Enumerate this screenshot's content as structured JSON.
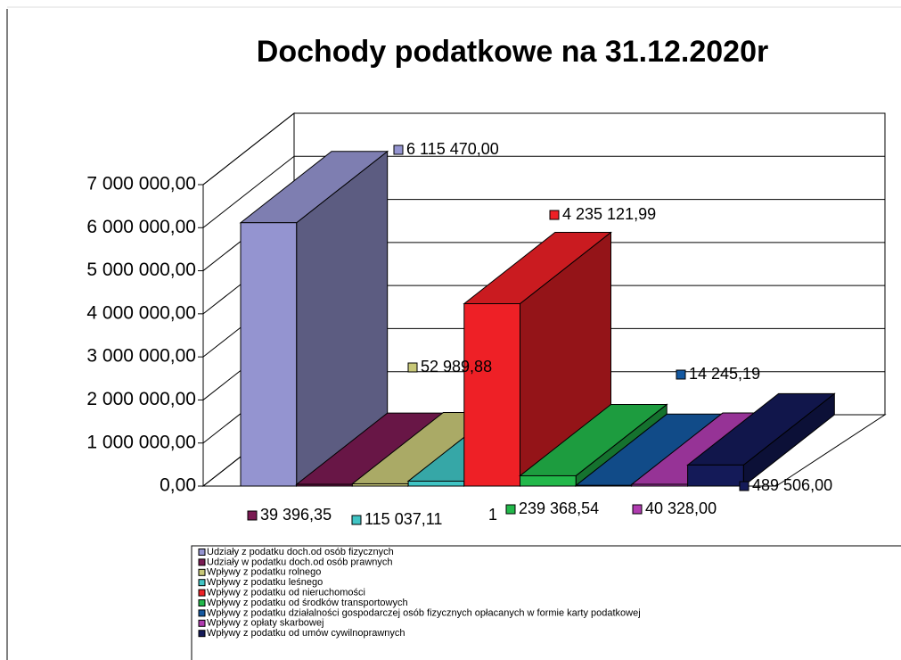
{
  "chart_data": {
    "type": "bar3d",
    "title": "Dochody podatkowe na 31.12.2020r",
    "categories": [
      "1"
    ],
    "series": [
      {
        "name": "Udziały z podatku doch.od osób fizycznych",
        "color": "#9494d0",
        "values": [
          6115470.0
        ],
        "value_labels": [
          "6 115 470,00"
        ]
      },
      {
        "name": "Udziały w podatku doch.od osób prawnych",
        "color": "#7a1a52",
        "values": [
          39396.35
        ],
        "value_labels": [
          "39 396,35"
        ]
      },
      {
        "name": "Wpływy z podatku rolnego",
        "color": "#c8c878",
        "values": [
          52989.88
        ],
        "value_labels": [
          "52 989,88"
        ]
      },
      {
        "name": "Wpływy z podatku leśnego",
        "color": "#40c4c4",
        "values": [
          115037.11
        ],
        "value_labels": [
          "115 037,11"
        ]
      },
      {
        "name": "Wpływy z podatku od nieruchomości",
        "color": "#ee2026",
        "values": [
          4235121.99
        ],
        "value_labels": [
          "4 235 121,99"
        ]
      },
      {
        "name": "Wpływy z podatku od środków transportowych",
        "color": "#22b84a",
        "values": [
          239368.54
        ],
        "value_labels": [
          "239 368,54"
        ]
      },
      {
        "name": "Wpływy z podatku działalności gospodarczej osób fizycznych opłacanych w formie karty podatkowej",
        "color": "#1458a0",
        "values": [
          14245.19
        ],
        "value_labels": [
          "14 245,19"
        ]
      },
      {
        "name": "Wpływy z opłaty skarbowej",
        "color": "#b03cb0",
        "values": [
          40328.0
        ],
        "value_labels": [
          "40 328,00"
        ]
      },
      {
        "name": "Wpływy z podatku od umów cywilnoprawnych",
        "color": "#141a58",
        "values": [
          489506.0
        ],
        "value_labels": [
          "489 506,00"
        ]
      }
    ],
    "ylim": [
      0,
      7000000
    ],
    "yticks": [
      {
        "value": 0,
        "label": "0,00"
      },
      {
        "value": 1000000,
        "label": "1 000 000,00"
      },
      {
        "value": 2000000,
        "label": "2 000 000,00"
      },
      {
        "value": 3000000,
        "label": "3 000 000,00"
      },
      {
        "value": 4000000,
        "label": "4 000 000,00"
      },
      {
        "value": 5000000,
        "label": "5 000 000,00"
      },
      {
        "value": 6000000,
        "label": "6 000 000,00"
      },
      {
        "value": 7000000,
        "label": "7 000 000,00"
      }
    ],
    "grid": true
  }
}
